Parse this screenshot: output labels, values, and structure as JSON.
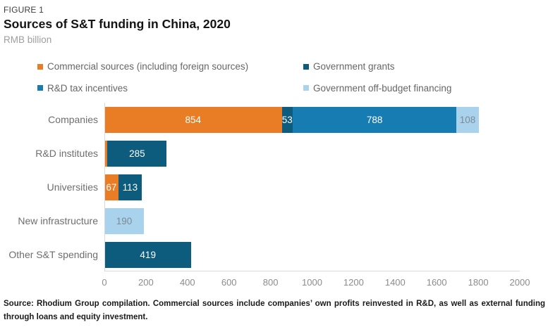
{
  "header": {
    "eyebrow": "FIGURE 1",
    "title": "Sources of S&T funding in China, 2020",
    "subtitle": "RMB billion"
  },
  "legend": {
    "items": [
      {
        "key": "commercial",
        "label": "Commercial sources (including foreign sources)",
        "color": "#E87D26"
      },
      {
        "key": "government-grants",
        "label": "Government grants",
        "color": "#0D5C7D"
      },
      {
        "key": "rd-tax-incentives",
        "label": "R&D tax incentives",
        "color": "#177CB2"
      },
      {
        "key": "off-budget",
        "label": "Government off-budget financing",
        "color": "#A9D2EC"
      }
    ]
  },
  "chart_data": {
    "type": "bar",
    "orientation": "horizontal",
    "stacked": true,
    "title": "Sources of S&T funding in China, 2020",
    "unit": "RMB billion",
    "categories": [
      "Companies",
      "R&D institutes",
      "Universities",
      "New infrastructure",
      "Other S&T spending"
    ],
    "series": [
      {
        "key": "commercial",
        "name": "Commercial sources (including foreign sources)",
        "color": "#E87D26",
        "label_color": "#FFFFFF",
        "values": [
          854,
          15,
          67,
          0,
          0
        ],
        "labels": [
          "854",
          "",
          "67",
          "",
          ""
        ]
      },
      {
        "key": "government-grants",
        "name": "Government grants",
        "color": "#0D5C7D",
        "label_color": "#FFFFFF",
        "values": [
          53,
          285,
          113,
          0,
          419
        ],
        "labels": [
          "53",
          "285",
          "113",
          "",
          "419"
        ]
      },
      {
        "key": "rd-tax-incentives",
        "name": "R&D tax incentives",
        "color": "#177CB2",
        "label_color": "#FFFFFF",
        "values": [
          788,
          0,
          0,
          0,
          0
        ],
        "labels": [
          "788",
          "",
          "",
          "",
          ""
        ]
      },
      {
        "key": "off-budget",
        "name": "Government off-budget financing",
        "color": "#A9D2EC",
        "label_color": "#7D8B96",
        "values": [
          108,
          0,
          0,
          190,
          0
        ],
        "labels": [
          "108",
          "",
          "",
          "190",
          ""
        ]
      }
    ],
    "xlim": [
      0,
      2000
    ],
    "xticks": [
      0,
      200,
      400,
      600,
      800,
      1000,
      1200,
      1400,
      1600,
      1800,
      2000
    ],
    "grid": false,
    "legend_position": "top"
  },
  "footer": {
    "source": "Source: Rhodium Group compilation. Commercial sources include companies’ own profits reinvested in R&D, as well as external funding through loans and equity investment."
  }
}
